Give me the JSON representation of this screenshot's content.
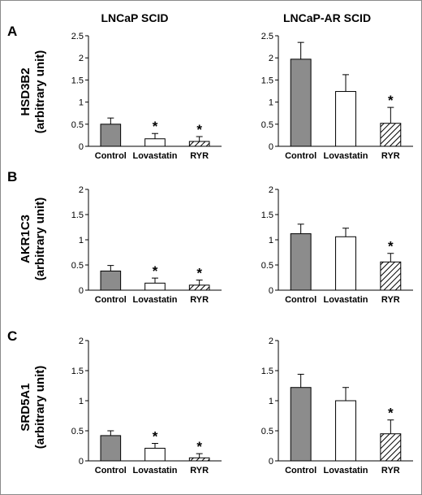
{
  "column_titles": [
    "LNCaP SCID",
    "LNCaP-AR SCID"
  ],
  "panels": [
    {
      "letter": "A",
      "ylabel": [
        "HSD3B2",
        "(arbitrary unit)"
      ]
    },
    {
      "letter": "B",
      "ylabel": [
        "AKR1C3",
        "(arbitrary unit)"
      ]
    },
    {
      "letter": "C",
      "ylabel": [
        "SRD5A1",
        "(arbitrary unit)"
      ]
    }
  ],
  "colors": {
    "control": "#8c8c8c",
    "lovastatin": "#ffffff",
    "ryr_hatch": "#000000",
    "outline": "#000000"
  },
  "chart_data": [
    {
      "type": "bar",
      "panel": "A",
      "title": "LNCaP SCID",
      "ylabel": "HSD3B2 (arbitrary unit)",
      "categories": [
        "Control",
        "Lovastatin",
        "RYR"
      ],
      "values": [
        0.5,
        0.17,
        0.11
      ],
      "errors": [
        0.14,
        0.12,
        0.11
      ],
      "significant": [
        false,
        true,
        true
      ],
      "ylim": [
        0,
        2.5
      ],
      "yticks": [
        0,
        0.5,
        1,
        1.5,
        2,
        2.5
      ],
      "yticklabels": [
        "0",
        "0.5",
        "1",
        "1.5",
        "2",
        "2.5"
      ]
    },
    {
      "type": "bar",
      "panel": "A",
      "title": "LNCaP-AR SCID",
      "ylabel": "HSD3B2 (arbitrary unit)",
      "categories": [
        "Control",
        "Lovastatin",
        "RYR"
      ],
      "values": [
        1.97,
        1.24,
        0.52
      ],
      "errors": [
        0.38,
        0.38,
        0.36
      ],
      "significant": [
        false,
        false,
        true
      ],
      "ylim": [
        0,
        2.5
      ],
      "yticks": [
        0,
        0.5,
        1,
        1.5,
        2,
        2.5
      ],
      "yticklabels": [
        "0",
        "0.5",
        "1",
        "1.5",
        "2",
        "2.5"
      ]
    },
    {
      "type": "bar",
      "panel": "B",
      "title": "",
      "ylabel": "AKR1C3 (arbitrary unit)",
      "categories": [
        "Control",
        "Lovastatin",
        "RYR"
      ],
      "values": [
        0.38,
        0.14,
        0.1
      ],
      "errors": [
        0.11,
        0.1,
        0.1
      ],
      "significant": [
        false,
        true,
        true
      ],
      "ylim": [
        0,
        2
      ],
      "yticks": [
        0,
        0.5,
        1,
        1.5,
        2
      ],
      "yticklabels": [
        "0",
        "0.5",
        "1",
        "1.5",
        "2"
      ]
    },
    {
      "type": "bar",
      "panel": "B",
      "title": "",
      "ylabel": "AKR1C3 (arbitrary unit)",
      "categories": [
        "Control",
        "Lovastatin",
        "RYR"
      ],
      "values": [
        1.12,
        1.06,
        0.56
      ],
      "errors": [
        0.19,
        0.17,
        0.17
      ],
      "significant": [
        false,
        false,
        true
      ],
      "ylim": [
        0,
        2
      ],
      "yticks": [
        0,
        0.5,
        1,
        1.5,
        2
      ],
      "yticklabels": [
        "0",
        "0.5",
        "1",
        "1.5",
        "2"
      ]
    },
    {
      "type": "bar",
      "panel": "C",
      "title": "",
      "ylabel": "SRD5A1 (arbitrary unit)",
      "categories": [
        "Control",
        "Lovastatin",
        "RYR"
      ],
      "values": [
        0.42,
        0.21,
        0.05
      ],
      "errors": [
        0.08,
        0.08,
        0.07
      ],
      "significant": [
        false,
        true,
        true
      ],
      "ylim": [
        0,
        2
      ],
      "yticks": [
        0,
        0.5,
        1,
        1.5,
        2
      ],
      "yticklabels": [
        "0",
        "0.5",
        "1",
        "1.5",
        "2"
      ]
    },
    {
      "type": "bar",
      "panel": "C",
      "title": "",
      "ylabel": "SRD5A1 (arbitrary unit)",
      "categories": [
        "Control",
        "Lovastatin",
        "RYR"
      ],
      "values": [
        1.22,
        1.0,
        0.45
      ],
      "errors": [
        0.22,
        0.22,
        0.23
      ],
      "significant": [
        false,
        false,
        true
      ],
      "ylim": [
        0,
        2
      ],
      "yticks": [
        0,
        0.5,
        1,
        1.5,
        2
      ],
      "yticklabels": [
        "0",
        "0.5",
        "1",
        "1.5",
        "2"
      ]
    }
  ]
}
